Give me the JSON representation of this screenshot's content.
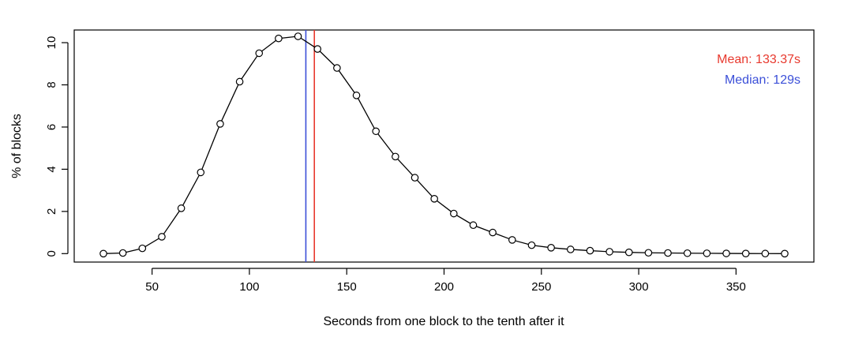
{
  "chart_data": {
    "type": "line",
    "title": "",
    "xlabel": "Seconds from one block to the tenth after it",
    "ylabel": "% of blocks",
    "xlim": [
      10,
      390
    ],
    "ylim": [
      -0.4,
      10.6
    ],
    "xticks": [
      50,
      100,
      150,
      200,
      250,
      300,
      350
    ],
    "yticks": [
      0,
      2,
      4,
      6,
      8,
      10
    ],
    "grid": false,
    "marker": "open-circle",
    "line_color": "#000000",
    "series": [
      {
        "x": [
          25,
          35,
          45,
          55,
          65,
          75,
          85,
          95,
          105,
          115,
          125,
          135,
          145,
          155,
          165,
          175,
          185,
          195,
          205,
          215,
          225,
          235,
          245,
          255,
          265,
          275,
          285,
          295,
          305,
          315,
          325,
          335,
          345,
          355,
          365,
          375
        ],
        "y": [
          0.0,
          0.03,
          0.25,
          0.8,
          2.15,
          3.85,
          6.15,
          8.15,
          9.5,
          10.2,
          10.3,
          9.7,
          8.8,
          7.5,
          5.8,
          4.6,
          3.6,
          2.6,
          1.9,
          1.35,
          1.0,
          0.65,
          0.4,
          0.28,
          0.2,
          0.14,
          0.09,
          0.06,
          0.04,
          0.03,
          0.02,
          0.015,
          0.01,
          0.005,
          0.003,
          0.0
        ]
      }
    ],
    "vlines": [
      {
        "label": "Mean: 133.37s",
        "x": 133.37,
        "color": "#e8392e"
      },
      {
        "label": "Median: 129s",
        "x": 129,
        "color": "#3b4fd8"
      }
    ],
    "legend_position": "top-right"
  }
}
